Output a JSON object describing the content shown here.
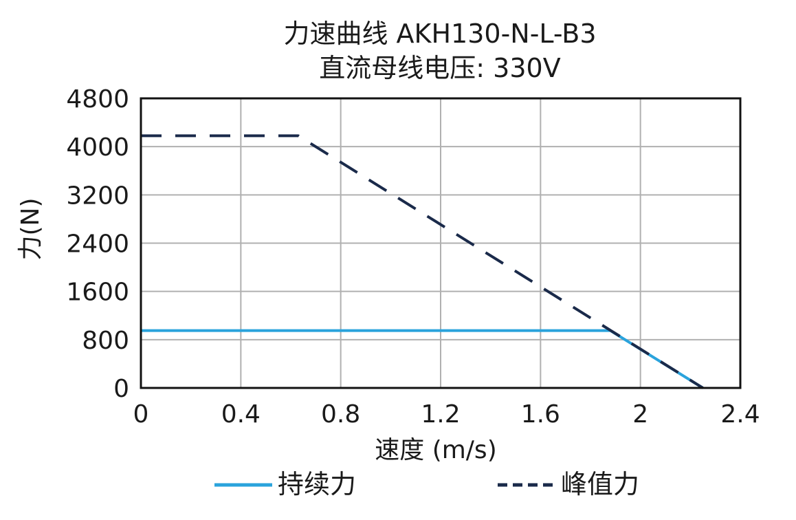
{
  "chart_data": {
    "type": "line",
    "title": [
      "力速曲线 AKH130-N-L-B3",
      "直流母线电压: 330V"
    ],
    "xlabel": "速度 (m/s)",
    "ylabel": "力(N)",
    "xlim": [
      0,
      2.4
    ],
    "ylim": [
      0,
      4800
    ],
    "xticks": [
      0,
      0.4,
      0.8,
      1.2,
      1.6,
      2,
      2.4
    ],
    "xtick_labels": [
      "0",
      "0.4",
      "0.8",
      "1.2",
      "1.6",
      "2",
      "2.4"
    ],
    "yticks": [
      0,
      800,
      1600,
      2400,
      3200,
      4000,
      4800
    ],
    "ytick_labels": [
      "0",
      "800",
      "1600",
      "2400",
      "3200",
      "4000",
      "4800"
    ],
    "grid": true,
    "legend_position": "bottom",
    "series": [
      {
        "name": "持续力",
        "color": "#2aa3dc",
        "style": "solid",
        "x": [
          0,
          1.88,
          2.25
        ],
        "y": [
          950,
          950,
          0
        ]
      },
      {
        "name": "峰值力",
        "color": "#1a2a4a",
        "style": "dashed",
        "x": [
          0,
          0.63,
          2.25
        ],
        "y": [
          4180,
          4180,
          0
        ]
      }
    ]
  }
}
